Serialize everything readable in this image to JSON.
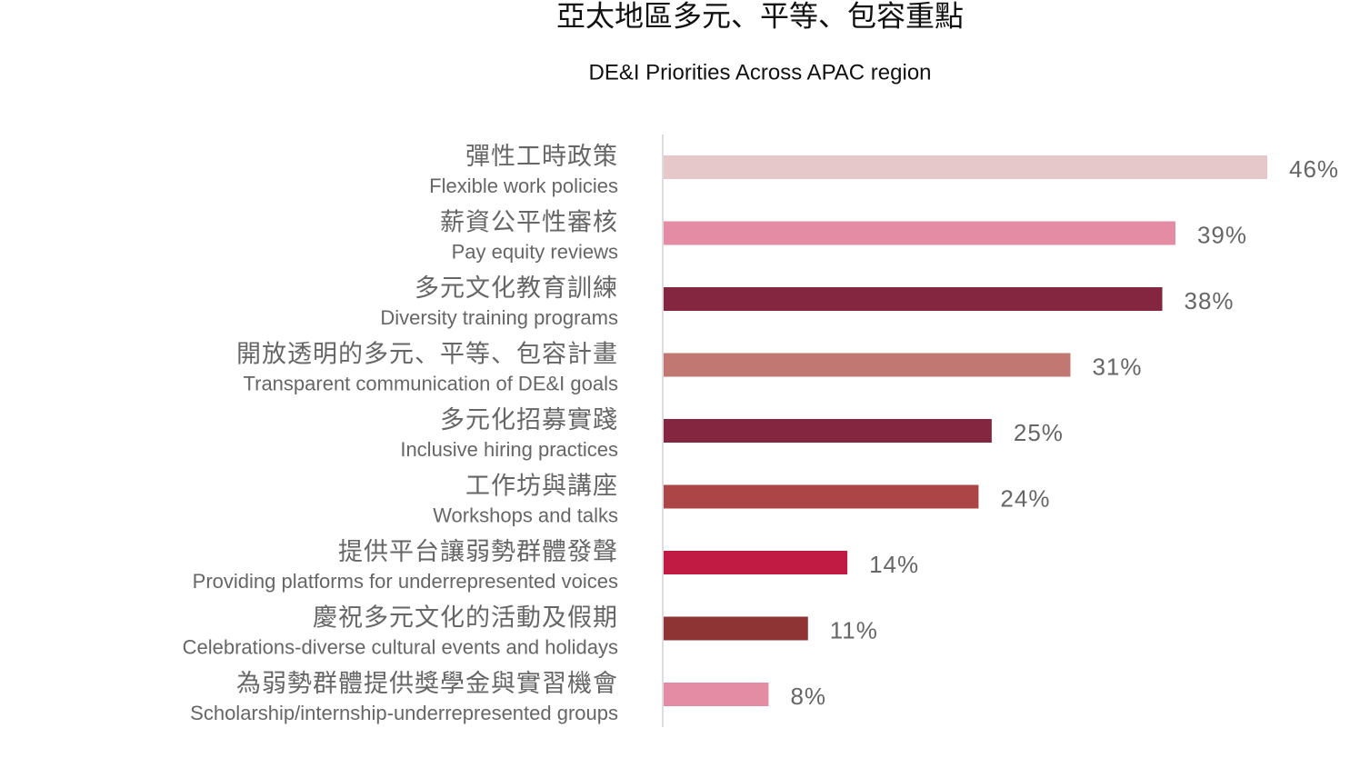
{
  "chart_data": {
    "type": "bar",
    "orientation": "horizontal",
    "title": "亞太地區多元、平等、包容重點",
    "subtitle": "DE&I Priorities Across APAC region",
    "categories": [
      "彈性工時政策",
      "薪資公平性審核",
      "多元文化教育訓練",
      "開放透明的多元、平等、包容計畫",
      "多元化招募實踐",
      "工作坊與講座",
      "提供平台讓弱勢群體發聲",
      "慶祝多元文化的活動及假期",
      "為弱勢群體提供獎學金與實習機會"
    ],
    "category_subtitles": [
      "Flexible work policies",
      "Pay equity reviews",
      "Diversity training programs",
      "Transparent communication of DE&I goals",
      "Inclusive hiring practices",
      "Workshops and talks",
      "Providing platforms for underrepresented voices",
      "Celebrations-diverse cultural events and holidays",
      "Scholarship/internship-underrepresented groups"
    ],
    "values": [
      46,
      39,
      38,
      31,
      25,
      24,
      14,
      11,
      8
    ],
    "value_labels": [
      "46%",
      "39%",
      "38%",
      "31%",
      "25%",
      "24%",
      "14%",
      "11%",
      "8%"
    ],
    "colors": [
      "#e6c8ca",
      "#e38ca4",
      "#84263f",
      "#c27872",
      "#84263f",
      "#ac4545",
      "#c11b43",
      "#8e3435",
      "#e38ca4"
    ]
  }
}
